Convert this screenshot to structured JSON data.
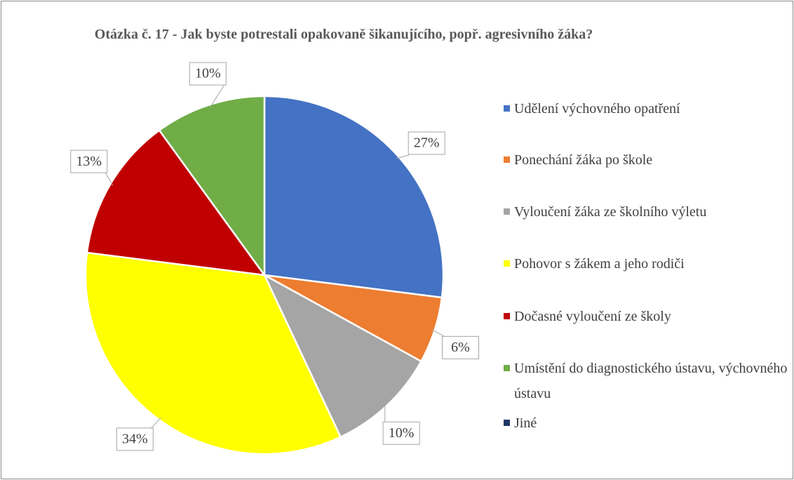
{
  "chart_data": {
    "type": "pie",
    "title": "Otázka č. 17 - Jak byste potrestali opakovaně šikanujícího, popř. agresivního žáka?",
    "categories": [
      "Udělení výchovného opatření",
      "Ponechání žáka po škole",
      "Vyloučení žáka ze školního výletu",
      "Pohovor s žákem a jeho rodiči",
      "Dočasné vyloučení ze školy",
      "Umístění do diagnostického ústavu, výchovného ústavu",
      "Jiné"
    ],
    "values": [
      27,
      6,
      10,
      34,
      13,
      10,
      0
    ],
    "value_labels": [
      "27%",
      "6%",
      "10%",
      "34%",
      "13%",
      "10%",
      null
    ],
    "colors": [
      "#4472c4",
      "#ed7d31",
      "#a5a5a5",
      "#ffff00",
      "#c00000",
      "#70ad47",
      "#1f3864"
    ],
    "legend": "right"
  }
}
